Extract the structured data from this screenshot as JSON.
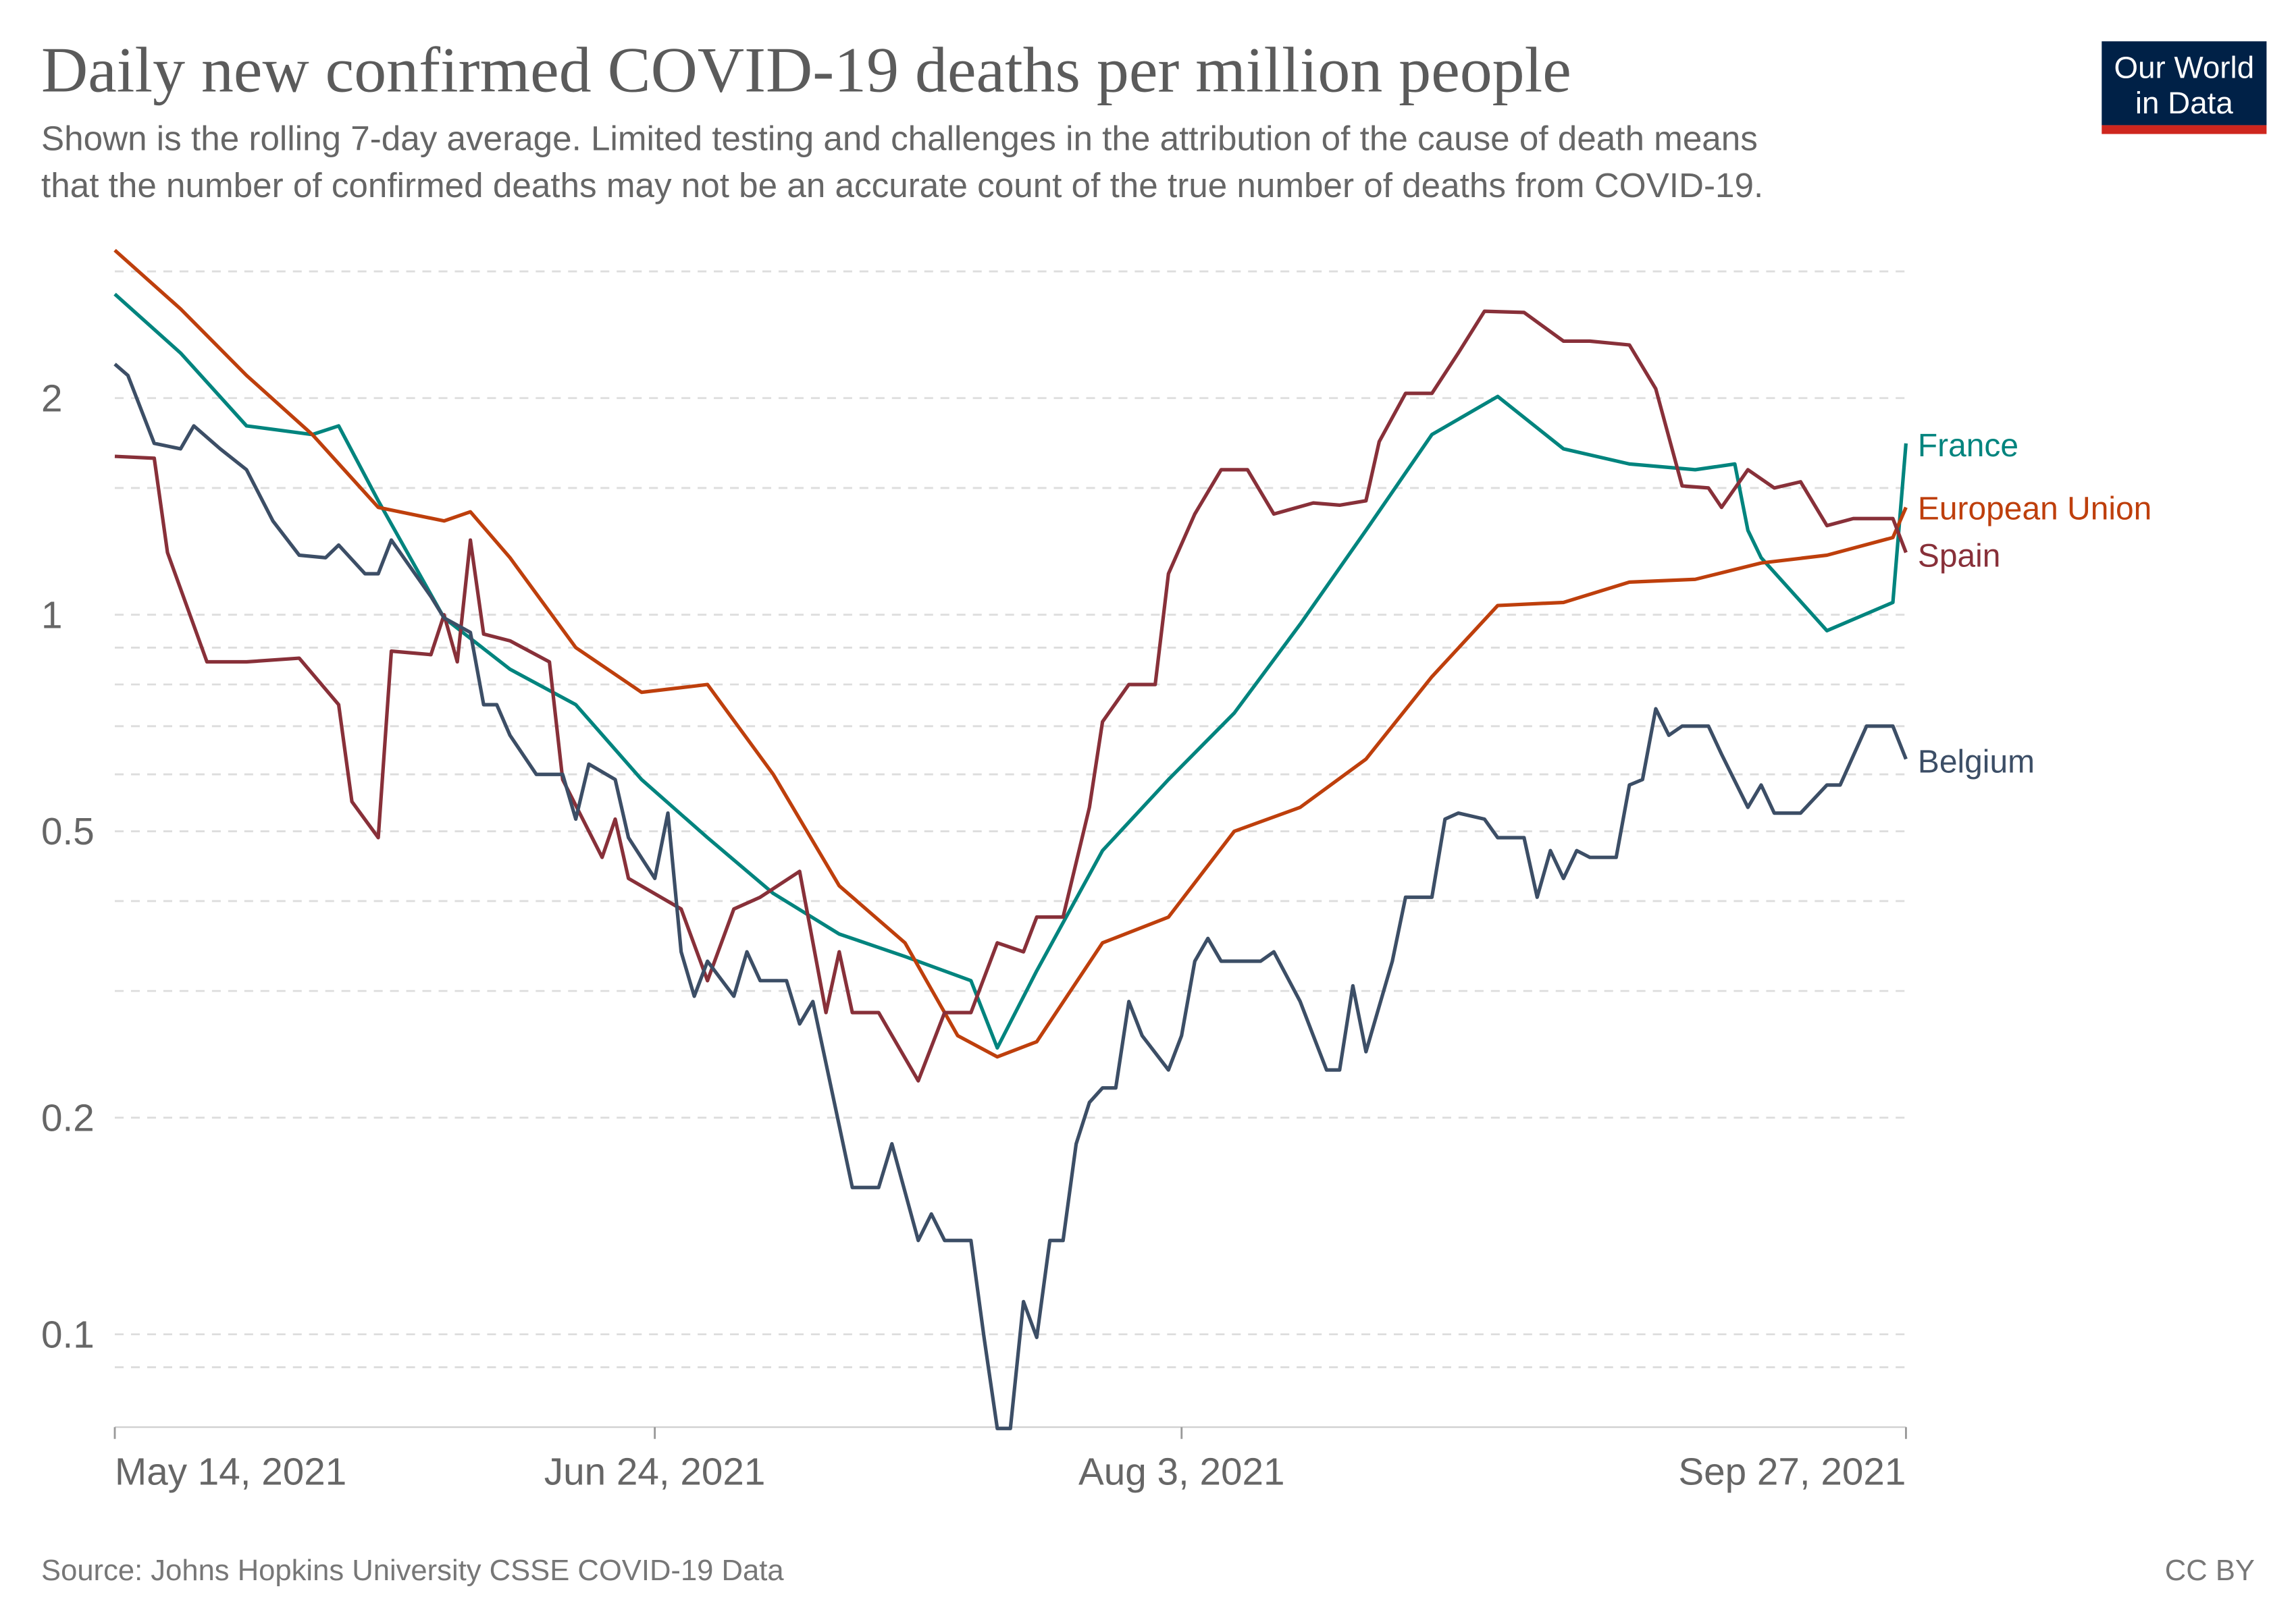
{
  "header": {
    "title": "Daily new confirmed COVID-19 deaths per million people",
    "subtitle_line1": "Shown is the rolling 7-day average. Limited testing and challenges in the attribution of the cause of death means",
    "subtitle_line2": "that the number of confirmed deaths may not be an accurate count of the true number of deaths from COVID-19."
  },
  "logo": {
    "line1": "Our World",
    "line2": "in Data",
    "bg_color": "#002147",
    "bar_color": "#ce261e"
  },
  "footer": {
    "source": "Source: Johns Hopkins University CSSE COVID-19 Data",
    "license": "CC BY"
  },
  "chart_data": {
    "type": "line",
    "title": "Daily new confirmed COVID-19 deaths per million people",
    "yscale": "log",
    "ylim": [
      0.0743,
      3.21
    ],
    "xlim": [
      "2021-05-14",
      "2021-09-27"
    ],
    "grid": "horizontal dashed",
    "legend": "inline labels at right end of lines",
    "y_ticks": [
      {
        "value": 0.1,
        "label": "0.1"
      },
      {
        "value": 0.2,
        "label": "0.2"
      },
      {
        "value": 0.5,
        "label": "0.5"
      },
      {
        "value": 1,
        "label": "1"
      },
      {
        "value": 2,
        "label": "2"
      }
    ],
    "y_minor_grid": [
      0.09,
      0.3,
      0.4,
      0.6,
      0.7,
      0.8,
      0.9,
      1.5,
      3
    ],
    "x_ticks": [
      {
        "date": "2021-05-14",
        "label": "May 14, 2021"
      },
      {
        "date": "2021-06-24",
        "label": "Jun 24, 2021"
      },
      {
        "date": "2021-08-03",
        "label": "Aug 3, 2021"
      },
      {
        "date": "2021-09-27",
        "label": "Sep 27, 2021"
      }
    ],
    "series": [
      {
        "name": "France",
        "color": "#00847e",
        "points": [
          [
            "2021-05-14",
            2.79
          ],
          [
            "2021-05-19",
            2.31
          ],
          [
            "2021-05-24",
            1.83
          ],
          [
            "2021-05-29",
            1.78
          ],
          [
            "2021-05-31",
            1.83
          ],
          [
            "2021-06-03",
            1.44
          ],
          [
            "2021-06-08",
            0.99
          ],
          [
            "2021-06-13",
            0.84
          ],
          [
            "2021-06-18",
            0.75
          ],
          [
            "2021-06-23",
            0.59
          ],
          [
            "2021-06-28",
            0.49
          ],
          [
            "2021-07-03",
            0.41
          ],
          [
            "2021-07-08",
            0.36
          ],
          [
            "2021-07-13",
            0.335
          ],
          [
            "2021-07-18",
            0.31
          ],
          [
            "2021-07-20",
            0.25
          ],
          [
            "2021-07-23",
            0.32
          ],
          [
            "2021-07-28",
            0.47
          ],
          [
            "2021-08-02",
            0.59
          ],
          [
            "2021-08-07",
            0.73
          ],
          [
            "2021-08-12",
            0.97
          ],
          [
            "2021-08-17",
            1.31
          ],
          [
            "2021-08-22",
            1.78
          ],
          [
            "2021-08-27",
            2.01
          ],
          [
            "2021-09-01",
            1.7
          ],
          [
            "2021-09-06",
            1.62
          ],
          [
            "2021-09-11",
            1.59
          ],
          [
            "2021-09-14",
            1.62
          ],
          [
            "2021-09-15",
            1.31
          ],
          [
            "2021-09-16",
            1.2
          ],
          [
            "2021-09-21",
            0.95
          ],
          [
            "2021-09-26",
            1.04
          ],
          [
            "2021-09-27",
            1.73
          ]
        ]
      },
      {
        "name": "European Union",
        "color": "#be3f0c",
        "points": [
          [
            "2021-05-14",
            3.21
          ],
          [
            "2021-05-19",
            2.66
          ],
          [
            "2021-05-24",
            2.15
          ],
          [
            "2021-05-29",
            1.78
          ],
          [
            "2021-06-03",
            1.41
          ],
          [
            "2021-06-08",
            1.35
          ],
          [
            "2021-06-10",
            1.39
          ],
          [
            "2021-06-13",
            1.2
          ],
          [
            "2021-06-18",
            0.9
          ],
          [
            "2021-06-23",
            0.78
          ],
          [
            "2021-06-28",
            0.8
          ],
          [
            "2021-07-03",
            0.6
          ],
          [
            "2021-07-08",
            0.42
          ],
          [
            "2021-07-13",
            0.35
          ],
          [
            "2021-07-17",
            0.26
          ],
          [
            "2021-07-20",
            0.243
          ],
          [
            "2021-07-23",
            0.255
          ],
          [
            "2021-07-28",
            0.35
          ],
          [
            "2021-08-02",
            0.38
          ],
          [
            "2021-08-07",
            0.5
          ],
          [
            "2021-08-12",
            0.54
          ],
          [
            "2021-08-17",
            0.63
          ],
          [
            "2021-08-22",
            0.82
          ],
          [
            "2021-08-27",
            1.03
          ],
          [
            "2021-09-01",
            1.04
          ],
          [
            "2021-09-06",
            1.11
          ],
          [
            "2021-09-11",
            1.12
          ],
          [
            "2021-09-16",
            1.18
          ],
          [
            "2021-09-21",
            1.21
          ],
          [
            "2021-09-26",
            1.28
          ],
          [
            "2021-09-27",
            1.41
          ]
        ]
      },
      {
        "name": "Spain",
        "color": "#883039",
        "points": [
          [
            "2021-05-14",
            1.66
          ],
          [
            "2021-05-17",
            1.65
          ],
          [
            "2021-05-18",
            1.22
          ],
          [
            "2021-05-21",
            0.86
          ],
          [
            "2021-05-24",
            0.86
          ],
          [
            "2021-05-28",
            0.87
          ],
          [
            "2021-05-31",
            0.75
          ],
          [
            "2021-06-01",
            0.55
          ],
          [
            "2021-06-03",
            0.49
          ],
          [
            "2021-06-04",
            0.89
          ],
          [
            "2021-06-07",
            0.88
          ],
          [
            "2021-06-08",
            1.0
          ],
          [
            "2021-06-09",
            0.86
          ],
          [
            "2021-06-10",
            1.27
          ],
          [
            "2021-06-11",
            0.94
          ],
          [
            "2021-06-13",
            0.92
          ],
          [
            "2021-06-16",
            0.86
          ],
          [
            "2021-06-17",
            0.59
          ],
          [
            "2021-06-20",
            0.46
          ],
          [
            "2021-06-21",
            0.52
          ],
          [
            "2021-06-22",
            0.43
          ],
          [
            "2021-06-26",
            0.39
          ],
          [
            "2021-06-28",
            0.31
          ],
          [
            "2021-06-30",
            0.39
          ],
          [
            "2021-07-02",
            0.405
          ],
          [
            "2021-07-05",
            0.44
          ],
          [
            "2021-07-07",
            0.28
          ],
          [
            "2021-07-08",
            0.34
          ],
          [
            "2021-07-09",
            0.28
          ],
          [
            "2021-07-11",
            0.28
          ],
          [
            "2021-07-14",
            0.225
          ],
          [
            "2021-07-16",
            0.28
          ],
          [
            "2021-07-18",
            0.28
          ],
          [
            "2021-07-20",
            0.35
          ],
          [
            "2021-07-22",
            0.34
          ],
          [
            "2021-07-23",
            0.38
          ],
          [
            "2021-07-25",
            0.38
          ],
          [
            "2021-07-27",
            0.54
          ],
          [
            "2021-07-28",
            0.71
          ],
          [
            "2021-07-30",
            0.8
          ],
          [
            "2021-08-01",
            0.8
          ],
          [
            "2021-08-02",
            1.14
          ],
          [
            "2021-08-04",
            1.38
          ],
          [
            "2021-08-06",
            1.59
          ],
          [
            "2021-08-08",
            1.59
          ],
          [
            "2021-08-10",
            1.38
          ],
          [
            "2021-08-13",
            1.43
          ],
          [
            "2021-08-15",
            1.42
          ],
          [
            "2021-08-17",
            1.44
          ],
          [
            "2021-08-18",
            1.74
          ],
          [
            "2021-08-20",
            2.03
          ],
          [
            "2021-08-22",
            2.03
          ],
          [
            "2021-08-24",
            2.31
          ],
          [
            "2021-08-26",
            2.64
          ],
          [
            "2021-08-29",
            2.63
          ],
          [
            "2021-09-01",
            2.4
          ],
          [
            "2021-09-03",
            2.4
          ],
          [
            "2021-09-06",
            2.37
          ],
          [
            "2021-09-08",
            2.06
          ],
          [
            "2021-09-10",
            1.51
          ],
          [
            "2021-09-12",
            1.5
          ],
          [
            "2021-09-13",
            1.41
          ],
          [
            "2021-09-15",
            1.59
          ],
          [
            "2021-09-17",
            1.5
          ],
          [
            "2021-09-19",
            1.53
          ],
          [
            "2021-09-21",
            1.33
          ],
          [
            "2021-09-23",
            1.36
          ],
          [
            "2021-09-26",
            1.36
          ],
          [
            "2021-09-27",
            1.22
          ]
        ]
      },
      {
        "name": "Belgium",
        "color": "#3c4e66",
        "points": [
          [
            "2021-05-14",
            2.23
          ],
          [
            "2021-05-15",
            2.15
          ],
          [
            "2021-05-17",
            1.73
          ],
          [
            "2021-05-19",
            1.7
          ],
          [
            "2021-05-20",
            1.83
          ],
          [
            "2021-05-22",
            1.7
          ],
          [
            "2021-05-24",
            1.59
          ],
          [
            "2021-05-26",
            1.35
          ],
          [
            "2021-05-28",
            1.21
          ],
          [
            "2021-05-30",
            1.2
          ],
          [
            "2021-05-31",
            1.25
          ],
          [
            "2021-06-02",
            1.14
          ],
          [
            "2021-06-03",
            1.14
          ],
          [
            "2021-06-04",
            1.27
          ],
          [
            "2021-06-07",
            1.06
          ],
          [
            "2021-06-08",
            0.99
          ],
          [
            "2021-06-10",
            0.945
          ],
          [
            "2021-06-11",
            0.75
          ],
          [
            "2021-06-12",
            0.75
          ],
          [
            "2021-06-13",
            0.68
          ],
          [
            "2021-06-15",
            0.6
          ],
          [
            "2021-06-17",
            0.6
          ],
          [
            "2021-06-18",
            0.52
          ],
          [
            "2021-06-19",
            0.62
          ],
          [
            "2021-06-21",
            0.59
          ],
          [
            "2021-06-22",
            0.49
          ],
          [
            "2021-06-24",
            0.43
          ],
          [
            "2021-06-25",
            0.53
          ],
          [
            "2021-06-26",
            0.34
          ],
          [
            "2021-06-27",
            0.295
          ],
          [
            "2021-06-28",
            0.33
          ],
          [
            "2021-06-30",
            0.295
          ],
          [
            "2021-07-01",
            0.34
          ],
          [
            "2021-07-02",
            0.31
          ],
          [
            "2021-07-04",
            0.31
          ],
          [
            "2021-07-05",
            0.27
          ],
          [
            "2021-07-06",
            0.29
          ],
          [
            "2021-07-08",
            0.195
          ],
          [
            "2021-07-09",
            0.16
          ],
          [
            "2021-07-11",
            0.16
          ],
          [
            "2021-07-12",
            0.184
          ],
          [
            "2021-07-14",
            0.135
          ],
          [
            "2021-07-15",
            0.147
          ],
          [
            "2021-07-16",
            0.135
          ],
          [
            "2021-07-18",
            0.135
          ],
          [
            "2021-07-19",
            0.099
          ],
          [
            "2021-07-20",
            0.074
          ],
          [
            "2021-07-21",
            0.074
          ],
          [
            "2021-07-22",
            0.111
          ],
          [
            "2021-07-23",
            0.099
          ],
          [
            "2021-07-24",
            0.135
          ],
          [
            "2021-07-25",
            0.135
          ],
          [
            "2021-07-26",
            0.184
          ],
          [
            "2021-07-27",
            0.21
          ],
          [
            "2021-07-28",
            0.22
          ],
          [
            "2021-07-29",
            0.22
          ],
          [
            "2021-07-30",
            0.29
          ],
          [
            "2021-07-31",
            0.26
          ],
          [
            "2021-08-02",
            0.233
          ],
          [
            "2021-08-03",
            0.26
          ],
          [
            "2021-08-04",
            0.33
          ],
          [
            "2021-08-05",
            0.355
          ],
          [
            "2021-08-06",
            0.33
          ],
          [
            "2021-08-09",
            0.33
          ],
          [
            "2021-08-10",
            0.34
          ],
          [
            "2021-08-12",
            0.29
          ],
          [
            "2021-08-13",
            0.26
          ],
          [
            "2021-08-14",
            0.233
          ],
          [
            "2021-08-15",
            0.233
          ],
          [
            "2021-08-16",
            0.305
          ],
          [
            "2021-08-17",
            0.247
          ],
          [
            "2021-08-19",
            0.33
          ],
          [
            "2021-08-20",
            0.405
          ],
          [
            "2021-08-22",
            0.405
          ],
          [
            "2021-08-23",
            0.52
          ],
          [
            "2021-08-24",
            0.53
          ],
          [
            "2021-08-26",
            0.52
          ],
          [
            "2021-08-27",
            0.49
          ],
          [
            "2021-08-29",
            0.49
          ],
          [
            "2021-08-30",
            0.405
          ],
          [
            "2021-08-31",
            0.47
          ],
          [
            "2021-09-01",
            0.43
          ],
          [
            "2021-09-02",
            0.47
          ],
          [
            "2021-09-03",
            0.46
          ],
          [
            "2021-09-05",
            0.46
          ],
          [
            "2021-09-06",
            0.58
          ],
          [
            "2021-09-07",
            0.59
          ],
          [
            "2021-09-08",
            0.74
          ],
          [
            "2021-09-09",
            0.68
          ],
          [
            "2021-09-10",
            0.7
          ],
          [
            "2021-09-12",
            0.7
          ],
          [
            "2021-09-13",
            0.64
          ],
          [
            "2021-09-15",
            0.54
          ],
          [
            "2021-09-16",
            0.58
          ],
          [
            "2021-09-17",
            0.53
          ],
          [
            "2021-09-19",
            0.53
          ],
          [
            "2021-09-21",
            0.58
          ],
          [
            "2021-09-22",
            0.58
          ],
          [
            "2021-09-24",
            0.7
          ],
          [
            "2021-09-26",
            0.7
          ],
          [
            "2021-09-27",
            0.63
          ]
        ]
      }
    ]
  }
}
